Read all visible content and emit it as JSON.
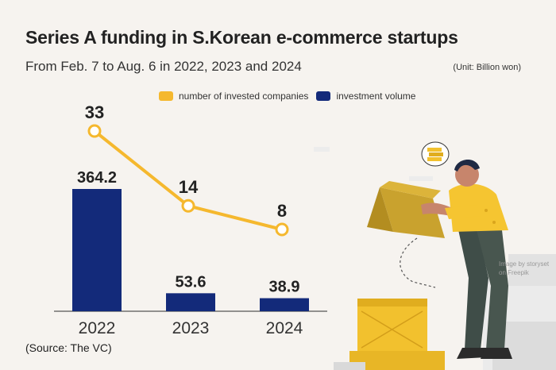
{
  "title": "Series A funding in S.Korean e-commerce startups",
  "subtitle": "From Feb. 7 to Aug. 6 in 2022, 2023 and 2024",
  "unit": "(Unit: Billion won)",
  "source": "(Source: The VC)",
  "credit": "Image by storyset on Freepik",
  "colors": {
    "bar": "#132a7a",
    "line": "#f5b82e",
    "background": "#f6f3ef"
  },
  "chart_data": {
    "type": "bar",
    "categories": [
      "2022",
      "2023",
      "2024"
    ],
    "series": [
      {
        "name": "number of invested companies",
        "type": "line",
        "values": [
          33,
          14,
          8
        ]
      },
      {
        "name": "investment volume",
        "type": "bar",
        "values": [
          364.2,
          53.6,
          38.9
        ]
      }
    ],
    "value_labels": {
      "number of invested companies": [
        "33",
        "14",
        "8"
      ],
      "investment volume": [
        "364.2",
        "53.6",
        "38.9"
      ]
    },
    "legend": [
      "number of invested companies",
      "investment volume"
    ],
    "legend_position": "top",
    "grid": false
  }
}
